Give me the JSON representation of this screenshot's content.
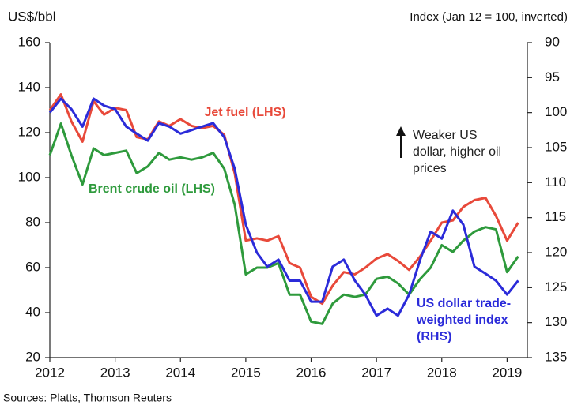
{
  "chart_data": {
    "type": "line",
    "ylabel": "US$/bbl",
    "y2label": "Index (Jan 12 = 100, inverted)",
    "source": "Sources: Platts, Thomson Reuters",
    "xlim": [
      2012,
      2019.31
    ],
    "xticks": [
      2012,
      2013,
      2014,
      2015,
      2016,
      2017,
      2018,
      2019
    ],
    "ylim": [
      20,
      160
    ],
    "yticks": [
      20,
      40,
      60,
      80,
      100,
      120,
      140,
      160
    ],
    "y2lim": [
      90,
      135
    ],
    "y2ticks": [
      90,
      95,
      100,
      105,
      110,
      115,
      120,
      125,
      130,
      135
    ],
    "y2_inverted": true,
    "grid": false,
    "x": [
      2012.0,
      2012.17,
      2012.33,
      2012.5,
      2012.67,
      2012.83,
      2013.0,
      2013.17,
      2013.33,
      2013.5,
      2013.67,
      2013.83,
      2014.0,
      2014.17,
      2014.33,
      2014.5,
      2014.67,
      2014.83,
      2015.0,
      2015.17,
      2015.33,
      2015.5,
      2015.67,
      2015.83,
      2016.0,
      2016.17,
      2016.33,
      2016.5,
      2016.67,
      2016.83,
      2017.0,
      2017.17,
      2017.33,
      2017.5,
      2017.67,
      2017.83,
      2018.0,
      2018.17,
      2018.33,
      2018.5,
      2018.67,
      2018.83,
      2019.0,
      2019.17
    ],
    "series": [
      {
        "name": "Jet fuel (LHS)",
        "color": "#e8493a",
        "values": [
          130,
          137,
          125,
          116,
          134,
          128,
          131,
          130,
          118,
          117,
          125,
          123,
          126,
          123,
          122,
          123,
          119,
          102,
          72,
          73,
          72,
          74,
          62,
          60,
          47,
          44,
          52,
          58,
          57,
          60,
          64,
          66,
          63,
          59,
          65,
          72,
          80,
          81,
          87,
          90,
          91,
          83,
          72,
          80
        ]
      },
      {
        "name": "Brent crude oil (LHS)",
        "color": "#2e9a3c",
        "values": [
          110,
          124,
          110,
          97,
          113,
          110,
          111,
          112,
          102,
          105,
          111,
          108,
          109,
          108,
          109,
          111,
          104,
          88,
          57,
          60,
          60,
          62,
          48,
          48,
          36,
          35,
          44,
          48,
          47,
          48,
          55,
          56,
          53,
          48,
          55,
          60,
          70,
          67,
          72,
          76,
          78,
          77,
          58,
          65
        ]
      },
      {
        "name": "US dollar trade-weighted index (RHS)",
        "color": "#2b2bd9",
        "axis": "y2",
        "values": [
          100,
          98,
          99.5,
          102,
          98,
          99,
          99.5,
          102,
          103,
          104,
          101.5,
          102,
          103,
          102.5,
          102,
          101.5,
          103.5,
          108,
          116,
          120,
          122,
          121,
          124,
          124,
          127,
          127,
          122,
          121,
          124,
          126,
          129,
          128,
          129,
          126,
          121,
          117,
          118,
          114,
          116,
          122,
          123,
          124,
          126,
          124
        ]
      }
    ],
    "annotations": [
      {
        "lines": [
          "Jet fuel (LHS)"
        ],
        "color": "#e8493a"
      },
      {
        "lines": [
          "Brent crude oil (LHS)"
        ],
        "color": "#2e9a3c"
      },
      {
        "lines": [
          "US dollar trade-",
          "weighted index",
          "(RHS)"
        ],
        "color": "#2b2bd9"
      },
      {
        "lines": [
          "Weaker US",
          "dollar, higher oil",
          "prices"
        ],
        "color": "#222222"
      }
    ]
  }
}
